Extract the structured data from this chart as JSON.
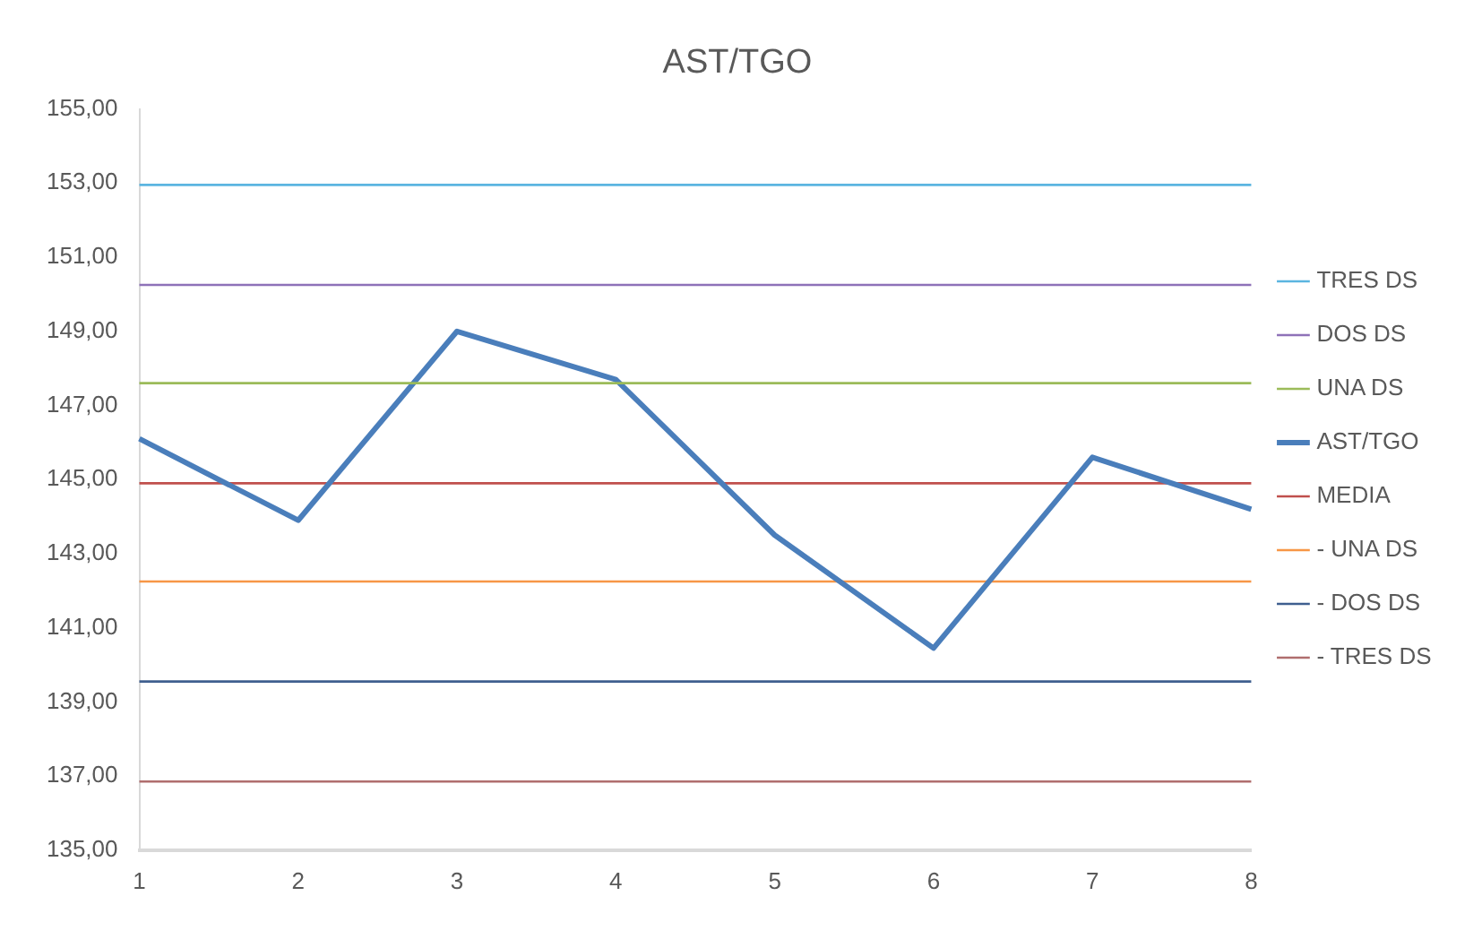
{
  "chart_data": {
    "type": "line",
    "title": "AST/TGO",
    "categories": [
      "1",
      "2",
      "3",
      "4",
      "5",
      "6",
      "7",
      "8"
    ],
    "series": [
      {
        "name": "TRES DS",
        "color": "#5bb5e0",
        "values": [
          152.95,
          152.95,
          152.95,
          152.95,
          152.95,
          152.95,
          152.95,
          152.95
        ]
      },
      {
        "name": "DOS DS",
        "color": "#8e72b8",
        "values": [
          150.25,
          150.25,
          150.25,
          150.25,
          150.25,
          150.25,
          150.25,
          150.25
        ]
      },
      {
        "name": "UNA DS",
        "color": "#9bbb59",
        "values": [
          147.6,
          147.6,
          147.6,
          147.6,
          147.6,
          147.6,
          147.6,
          147.6
        ]
      },
      {
        "name": "AST/TGO",
        "color": "#4a7ebb",
        "values": [
          146.1,
          143.9,
          149.0,
          147.7,
          143.5,
          140.45,
          145.6,
          144.2
        ]
      },
      {
        "name": "MEDIA",
        "color": "#c0504d",
        "values": [
          144.9,
          144.9,
          144.9,
          144.9,
          144.9,
          144.9,
          144.9,
          144.9
        ]
      },
      {
        "name": "- UNA DS",
        "color": "#f79646",
        "values": [
          142.25,
          142.25,
          142.25,
          142.25,
          142.25,
          142.25,
          142.25,
          142.25
        ]
      },
      {
        "name": "- DOS DS",
        "color": "#3f5f8f",
        "values": [
          139.55,
          139.55,
          139.55,
          139.55,
          139.55,
          139.55,
          139.55,
          139.55
        ]
      },
      {
        "name": "- TRES DS",
        "color": "#b06e6e",
        "values": [
          136.85,
          136.85,
          136.85,
          136.85,
          136.85,
          136.85,
          136.85,
          136.85
        ]
      }
    ],
    "ylim": [
      135,
      155
    ],
    "yticks": [
      {
        "value": 135,
        "label": "135,00"
      },
      {
        "value": 137,
        "label": "137,00"
      },
      {
        "value": 139,
        "label": "139,00"
      },
      {
        "value": 141,
        "label": "141,00"
      },
      {
        "value": 143,
        "label": "143,00"
      },
      {
        "value": 145,
        "label": "145,00"
      },
      {
        "value": 147,
        "label": "147,00"
      },
      {
        "value": 149,
        "label": "149,00"
      },
      {
        "value": 151,
        "label": "151,00"
      },
      {
        "value": 153,
        "label": "153,00"
      },
      {
        "value": 155,
        "label": "155,00"
      }
    ],
    "grid": false,
    "legend": "right",
    "marker": "none",
    "line_style": "solid"
  }
}
